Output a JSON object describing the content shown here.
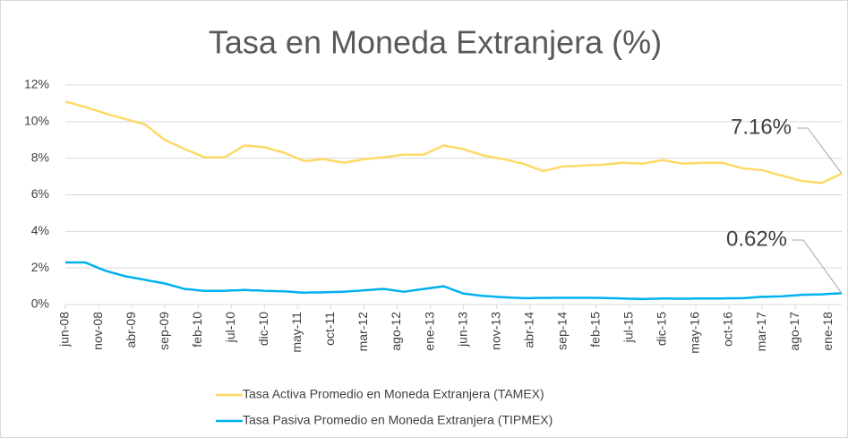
{
  "chart_data": {
    "type": "line",
    "title": "Tasa en Moneda Extranjera (%)",
    "categories": [
      "jun-08",
      null,
      null,
      null,
      null,
      "nov-08",
      null,
      null,
      null,
      null,
      "abr-09",
      null,
      null,
      null,
      null,
      "sep-09",
      null,
      null,
      null,
      null,
      "feb-10",
      null,
      null,
      null,
      null,
      "jul-10",
      null,
      null,
      null,
      null,
      "dic-10",
      null,
      null,
      null,
      null,
      "may-11",
      null,
      null,
      null,
      null,
      "oct-11",
      null,
      null,
      null,
      null,
      "mar-12",
      null,
      null,
      null,
      null,
      "ago-12",
      null,
      null,
      null,
      null,
      "ene-13",
      null,
      null,
      null,
      null,
      "jun-13",
      null,
      null,
      null,
      null,
      "nov-13",
      null,
      null,
      null,
      null,
      "abr-14",
      null,
      null,
      null,
      null,
      "sep-14",
      null,
      null,
      null,
      null,
      "feb-15",
      null,
      null,
      null,
      null,
      "jul-15",
      null,
      null,
      null,
      null,
      "dic-15",
      null,
      null,
      null,
      null,
      "may-16",
      null,
      null,
      null,
      null,
      "oct-16",
      null,
      null,
      null,
      null,
      "mar-17",
      null,
      null,
      null,
      null,
      "ago-17",
      null,
      null,
      null,
      null,
      "ene-18",
      null,
      null
    ],
    "series": [
      {
        "name": "Tasa Activa Promedio en Moneda Extranjera (TAMEX)",
        "color": "#ffd966",
        "end_label": "7.16%",
        "values": [
          11.1,
          11.0,
          10.9,
          10.8,
          10.68,
          10.57,
          10.45,
          10.35,
          10.25,
          10.15,
          10.05,
          9.95,
          9.85,
          9.57,
          9.28,
          9.0,
          8.83,
          8.67,
          8.5,
          8.35,
          8.2,
          8.05,
          8.05,
          8.05,
          8.05,
          8.27,
          8.48,
          8.7,
          8.67,
          8.63,
          8.6,
          8.5,
          8.4,
          8.3,
          8.15,
          8.0,
          7.85,
          7.88,
          7.92,
          7.95,
          7.88,
          7.82,
          7.75,
          7.82,
          7.88,
          7.95,
          7.98,
          8.02,
          8.05,
          8.1,
          8.15,
          8.2,
          8.2,
          8.2,
          8.2,
          8.37,
          8.53,
          8.7,
          8.63,
          8.57,
          8.5,
          8.38,
          8.27,
          8.15,
          8.08,
          8.02,
          7.95,
          7.87,
          7.78,
          7.7,
          7.57,
          7.43,
          7.3,
          7.38,
          7.47,
          7.55,
          7.57,
          7.58,
          7.6,
          7.62,
          7.63,
          7.65,
          7.68,
          7.72,
          7.75,
          7.73,
          7.72,
          7.7,
          7.77,
          7.83,
          7.9,
          7.83,
          7.77,
          7.7,
          7.72,
          7.73,
          7.75,
          7.75,
          7.75,
          7.75,
          7.65,
          7.55,
          7.45,
          7.42,
          7.38,
          7.35,
          7.25,
          7.15,
          7.05,
          6.95,
          6.85,
          6.75,
          6.72,
          6.68,
          6.65,
          6.82,
          6.99,
          7.16
        ]
      },
      {
        "name": "Tasa Pasiva Promedio en Moneda Extranjera (TIPMEX)",
        "color": "#00b0f0",
        "end_label": "0.62%",
        "values": [
          2.3,
          2.3,
          2.3,
          2.3,
          2.15,
          2.0,
          1.85,
          1.75,
          1.65,
          1.55,
          1.48,
          1.42,
          1.35,
          1.28,
          1.22,
          1.15,
          1.05,
          0.95,
          0.85,
          0.82,
          0.78,
          0.75,
          0.75,
          0.75,
          0.75,
          0.77,
          0.78,
          0.8,
          0.78,
          0.77,
          0.75,
          0.74,
          0.73,
          0.72,
          0.7,
          0.67,
          0.65,
          0.66,
          0.66,
          0.67,
          0.68,
          0.69,
          0.7,
          0.73,
          0.75,
          0.78,
          0.8,
          0.83,
          0.85,
          0.8,
          0.75,
          0.7,
          0.75,
          0.8,
          0.85,
          0.9,
          0.95,
          1.0,
          0.87,
          0.73,
          0.6,
          0.56,
          0.51,
          0.47,
          0.45,
          0.42,
          0.4,
          0.38,
          0.37,
          0.35,
          0.35,
          0.36,
          0.36,
          0.36,
          0.37,
          0.37,
          0.37,
          0.37,
          0.37,
          0.37,
          0.36,
          0.36,
          0.35,
          0.34,
          0.33,
          0.32,
          0.31,
          0.3,
          0.31,
          0.32,
          0.33,
          0.33,
          0.32,
          0.32,
          0.32,
          0.33,
          0.33,
          0.33,
          0.33,
          0.33,
          0.34,
          0.34,
          0.35,
          0.37,
          0.4,
          0.42,
          0.43,
          0.44,
          0.45,
          0.48,
          0.5,
          0.53,
          0.54,
          0.55,
          0.56,
          0.58,
          0.6,
          0.62
        ]
      }
    ],
    "ylim": [
      0,
      12
    ],
    "yticks": [
      {
        "value": 0,
        "label": "0%"
      },
      {
        "value": 2,
        "label": "2%"
      },
      {
        "value": 4,
        "label": "4%"
      },
      {
        "value": 6,
        "label": "6%"
      },
      {
        "value": 8,
        "label": "8%"
      },
      {
        "value": 10,
        "label": "10%"
      },
      {
        "value": 12,
        "label": "12%"
      }
    ],
    "grid": true
  }
}
